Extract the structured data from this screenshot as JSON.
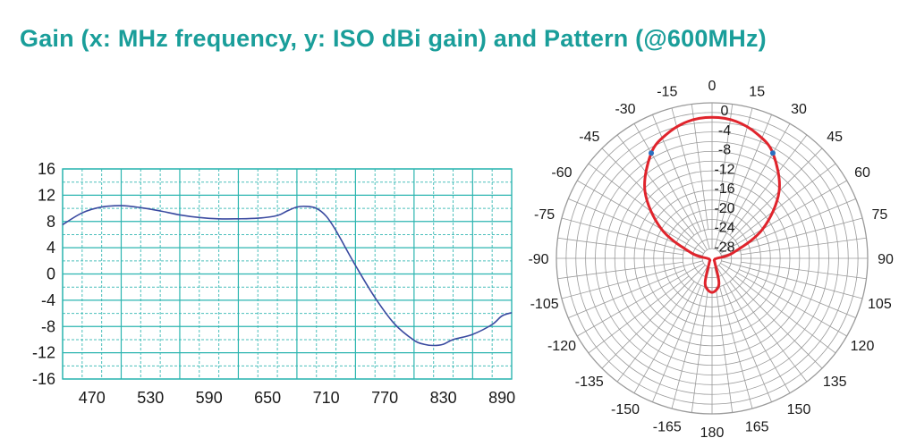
{
  "header": {
    "title": "Gain (x: MHz frequency, y: ISO dBi gain) and Pattern (@600MHz)"
  },
  "colors": {
    "title": "#1a9e9a",
    "grid": "#2cb5b0",
    "gain_line": "#3a4aa0",
    "pattern_line": "#e0242c",
    "polar_grid": "#9a9a9a",
    "marker": "#2a6fc0"
  },
  "chart_data": [
    {
      "type": "line",
      "title": "",
      "xlabel": "",
      "ylabel": "",
      "xlim": [
        440,
        900
      ],
      "ylim": [
        -16,
        16
      ],
      "x_ticks": [
        470,
        530,
        590,
        650,
        710,
        770,
        830,
        890
      ],
      "y_ticks": [
        16,
        12,
        8,
        4,
        0,
        -4,
        -8,
        -12,
        -16
      ],
      "grid": true,
      "series": [
        {
          "x": [
            440,
            460,
            480,
            500,
            520,
            540,
            560,
            580,
            600,
            620,
            640,
            660,
            670,
            680,
            690,
            700,
            710,
            720,
            740,
            760,
            780,
            800,
            810,
            820,
            830,
            840,
            860,
            880,
            890,
            900
          ],
          "y": [
            7.5,
            9.3,
            10.2,
            10.4,
            10.1,
            9.6,
            9.0,
            8.6,
            8.4,
            8.4,
            8.5,
            8.9,
            9.6,
            10.2,
            10.3,
            10.0,
            8.8,
            6.6,
            1.3,
            -3.6,
            -7.6,
            -10.1,
            -10.7,
            -10.9,
            -10.7,
            -10.0,
            -9.2,
            -7.7,
            -6.4,
            -5.9
          ]
        }
      ]
    },
    {
      "type": "polar",
      "title": "",
      "angle_ticks": [
        0,
        15,
        30,
        45,
        60,
        75,
        90,
        105,
        120,
        135,
        150,
        165,
        180,
        -165,
        -150,
        -135,
        -120,
        -105,
        -90,
        -75,
        -60,
        -45,
        -30,
        -15
      ],
      "radial_ticks": [
        0,
        -4,
        -8,
        -12,
        -16,
        -20,
        -24,
        -28
      ],
      "rlim": [
        -32,
        0
      ],
      "series": [
        {
          "angles": [
            -180,
            -165,
            -150,
            -135,
            -120,
            -105,
            -90,
            -75,
            -60,
            -45,
            -30,
            -20,
            -10,
            0,
            10,
            20,
            30,
            45,
            60,
            75,
            90,
            105,
            120,
            135,
            150,
            165,
            180
          ],
          "gain": [
            -25,
            -26.5,
            -30.8,
            -31.4,
            -31.4,
            -31.4,
            -31.0,
            -27.5,
            -20.0,
            -12.5,
            -7.0,
            -4.8,
            -3.4,
            -3.0,
            -3.4,
            -4.8,
            -7.0,
            -12.5,
            -20.0,
            -27.5,
            -31.0,
            -31.4,
            -31.4,
            -31.4,
            -30.8,
            -26.5,
            -25
          ]
        }
      ],
      "markers_deg": [
        -30,
        30
      ]
    }
  ]
}
